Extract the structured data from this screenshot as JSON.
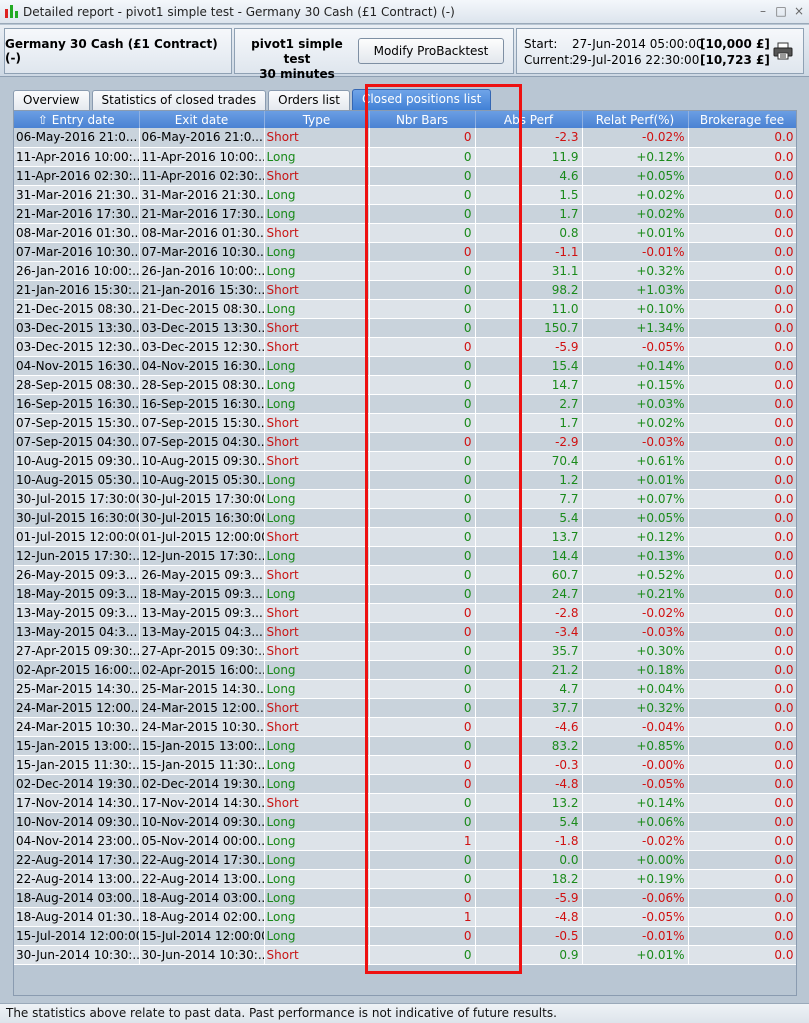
{
  "window": {
    "title": "Detailed report - pivot1 simple test - Germany 30 Cash (£1 Contract) (-)",
    "minimize_glyph": "–",
    "maximize_glyph": "□",
    "close_glyph": "×"
  },
  "header": {
    "instrument": "Germany 30 Cash (£1 Contract) (-)",
    "strategy_name": "pivot1 simple test",
    "timeframe": "30 minutes",
    "modify_button": "Modify ProBacktest",
    "start_label": "Start:",
    "start_date": "27-Jun-2014 05:00:00",
    "start_amount": "[10,000 £]",
    "current_label": "Current:",
    "current_date": "29-Jul-2016 22:30:00",
    "current_amount": "[10,723 £]"
  },
  "tabs": [
    {
      "label": "Overview",
      "active": false
    },
    {
      "label": "Statistics of closed trades",
      "active": false
    },
    {
      "label": "Orders list",
      "active": false
    },
    {
      "label": "Closed positions list",
      "active": true
    }
  ],
  "columns": [
    "Entry date",
    "Exit date",
    "Type",
    "Nbr Bars",
    "Abs Perf",
    "Relat Perf(%)",
    "Brokerage fee"
  ],
  "sort_indicator": "⇧",
  "rows": [
    [
      "06-May-2016 21:0...",
      "06-May-2016 21:0...",
      "Short",
      "0",
      "-2.3",
      "-0.02%",
      "0.0"
    ],
    [
      "11-Apr-2016 10:00:...",
      "11-Apr-2016 10:00:...",
      "Long",
      "0",
      "11.9",
      "+0.12%",
      "0.0"
    ],
    [
      "11-Apr-2016 02:30:...",
      "11-Apr-2016 02:30:...",
      "Short",
      "0",
      "4.6",
      "+0.05%",
      "0.0"
    ],
    [
      "31-Mar-2016 21:30...",
      "31-Mar-2016 21:30...",
      "Long",
      "0",
      "1.5",
      "+0.02%",
      "0.0"
    ],
    [
      "21-Mar-2016 17:30...",
      "21-Mar-2016 17:30...",
      "Long",
      "0",
      "1.7",
      "+0.02%",
      "0.0"
    ],
    [
      "08-Mar-2016 01:30...",
      "08-Mar-2016 01:30...",
      "Short",
      "0",
      "0.8",
      "+0.01%",
      "0.0"
    ],
    [
      "07-Mar-2016 10:30...",
      "07-Mar-2016 10:30...",
      "Long",
      "0",
      "-1.1",
      "-0.01%",
      "0.0"
    ],
    [
      "26-Jan-2016 10:00:...",
      "26-Jan-2016 10:00:...",
      "Long",
      "0",
      "31.1",
      "+0.32%",
      "0.0"
    ],
    [
      "21-Jan-2016 15:30:...",
      "21-Jan-2016 15:30:...",
      "Short",
      "0",
      "98.2",
      "+1.03%",
      "0.0"
    ],
    [
      "21-Dec-2015 08:30...",
      "21-Dec-2015 08:30...",
      "Long",
      "0",
      "11.0",
      "+0.10%",
      "0.0"
    ],
    [
      "03-Dec-2015 13:30...",
      "03-Dec-2015 13:30...",
      "Short",
      "0",
      "150.7",
      "+1.34%",
      "0.0"
    ],
    [
      "03-Dec-2015 12:30...",
      "03-Dec-2015 12:30...",
      "Short",
      "0",
      "-5.9",
      "-0.05%",
      "0.0"
    ],
    [
      "04-Nov-2015 16:30...",
      "04-Nov-2015 16:30...",
      "Long",
      "0",
      "15.4",
      "+0.14%",
      "0.0"
    ],
    [
      "28-Sep-2015 08:30...",
      "28-Sep-2015 08:30...",
      "Long",
      "0",
      "14.7",
      "+0.15%",
      "0.0"
    ],
    [
      "16-Sep-2015 16:30...",
      "16-Sep-2015 16:30...",
      "Long",
      "0",
      "2.7",
      "+0.03%",
      "0.0"
    ],
    [
      "07-Sep-2015 15:30...",
      "07-Sep-2015 15:30...",
      "Short",
      "0",
      "1.7",
      "+0.02%",
      "0.0"
    ],
    [
      "07-Sep-2015 04:30...",
      "07-Sep-2015 04:30...",
      "Short",
      "0",
      "-2.9",
      "-0.03%",
      "0.0"
    ],
    [
      "10-Aug-2015 09:30...",
      "10-Aug-2015 09:30...",
      "Short",
      "0",
      "70.4",
      "+0.61%",
      "0.0"
    ],
    [
      "10-Aug-2015 05:30...",
      "10-Aug-2015 05:30...",
      "Long",
      "0",
      "1.2",
      "+0.01%",
      "0.0"
    ],
    [
      "30-Jul-2015 17:30:00",
      "30-Jul-2015 17:30:00",
      "Long",
      "0",
      "7.7",
      "+0.07%",
      "0.0"
    ],
    [
      "30-Jul-2015 16:30:00",
      "30-Jul-2015 16:30:00",
      "Long",
      "0",
      "5.4",
      "+0.05%",
      "0.0"
    ],
    [
      "01-Jul-2015 12:00:00",
      "01-Jul-2015 12:00:00",
      "Short",
      "0",
      "13.7",
      "+0.12%",
      "0.0"
    ],
    [
      "12-Jun-2015 17:30:...",
      "12-Jun-2015 17:30:...",
      "Long",
      "0",
      "14.4",
      "+0.13%",
      "0.0"
    ],
    [
      "26-May-2015 09:3...",
      "26-May-2015 09:3...",
      "Short",
      "0",
      "60.7",
      "+0.52%",
      "0.0"
    ],
    [
      "18-May-2015 09:3...",
      "18-May-2015 09:3...",
      "Long",
      "0",
      "24.7",
      "+0.21%",
      "0.0"
    ],
    [
      "13-May-2015 09:3...",
      "13-May-2015 09:3...",
      "Short",
      "0",
      "-2.8",
      "-0.02%",
      "0.0"
    ],
    [
      "13-May-2015 04:3...",
      "13-May-2015 04:3...",
      "Short",
      "0",
      "-3.4",
      "-0.03%",
      "0.0"
    ],
    [
      "27-Apr-2015 09:30:...",
      "27-Apr-2015 09:30:...",
      "Short",
      "0",
      "35.7",
      "+0.30%",
      "0.0"
    ],
    [
      "02-Apr-2015 16:00:...",
      "02-Apr-2015 16:00:...",
      "Long",
      "0",
      "21.2",
      "+0.18%",
      "0.0"
    ],
    [
      "25-Mar-2015 14:30...",
      "25-Mar-2015 14:30...",
      "Long",
      "0",
      "4.7",
      "+0.04%",
      "0.0"
    ],
    [
      "24-Mar-2015 12:00...",
      "24-Mar-2015 12:00...",
      "Short",
      "0",
      "37.7",
      "+0.32%",
      "0.0"
    ],
    [
      "24-Mar-2015 10:30...",
      "24-Mar-2015 10:30...",
      "Short",
      "0",
      "-4.6",
      "-0.04%",
      "0.0"
    ],
    [
      "15-Jan-2015 13:00:...",
      "15-Jan-2015 13:00:...",
      "Long",
      "0",
      "83.2",
      "+0.85%",
      "0.0"
    ],
    [
      "15-Jan-2015 11:30:...",
      "15-Jan-2015 11:30:...",
      "Long",
      "0",
      "-0.3",
      "-0.00%",
      "0.0"
    ],
    [
      "02-Dec-2014 19:30...",
      "02-Dec-2014 19:30...",
      "Long",
      "0",
      "-4.8",
      "-0.05%",
      "0.0"
    ],
    [
      "17-Nov-2014 14:30...",
      "17-Nov-2014 14:30...",
      "Short",
      "0",
      "13.2",
      "+0.14%",
      "0.0"
    ],
    [
      "10-Nov-2014 09:30...",
      "10-Nov-2014 09:30...",
      "Long",
      "0",
      "5.4",
      "+0.06%",
      "0.0"
    ],
    [
      "04-Nov-2014 23:00...",
      "05-Nov-2014 00:00...",
      "Long",
      "1",
      "-1.8",
      "-0.02%",
      "0.0"
    ],
    [
      "22-Aug-2014 17:30...",
      "22-Aug-2014 17:30...",
      "Long",
      "0",
      "0.0",
      "+0.00%",
      "0.0"
    ],
    [
      "22-Aug-2014 13:00...",
      "22-Aug-2014 13:00...",
      "Long",
      "0",
      "18.2",
      "+0.19%",
      "0.0"
    ],
    [
      "18-Aug-2014 03:00...",
      "18-Aug-2014 03:00...",
      "Long",
      "0",
      "-5.9",
      "-0.06%",
      "0.0"
    ],
    [
      "18-Aug-2014 01:30...",
      "18-Aug-2014 02:00...",
      "Long",
      "1",
      "-4.8",
      "-0.05%",
      "0.0"
    ],
    [
      "15-Jul-2014 12:00:00",
      "15-Jul-2014 12:00:00",
      "Long",
      "0",
      "-0.5",
      "-0.01%",
      "0.0"
    ],
    [
      "30-Jun-2014 10:30:...",
      "30-Jun-2014 10:30:...",
      "Short",
      "0",
      "0.9",
      "+0.01%",
      "0.0"
    ]
  ],
  "status": "The statistics above relate to past data. Past performance is not indicative of future results.",
  "colors": {
    "positive": "#1a8a1a",
    "negative": "#d01010",
    "header_blue": "#4a82d3",
    "highlight_red": "#ee1111"
  }
}
